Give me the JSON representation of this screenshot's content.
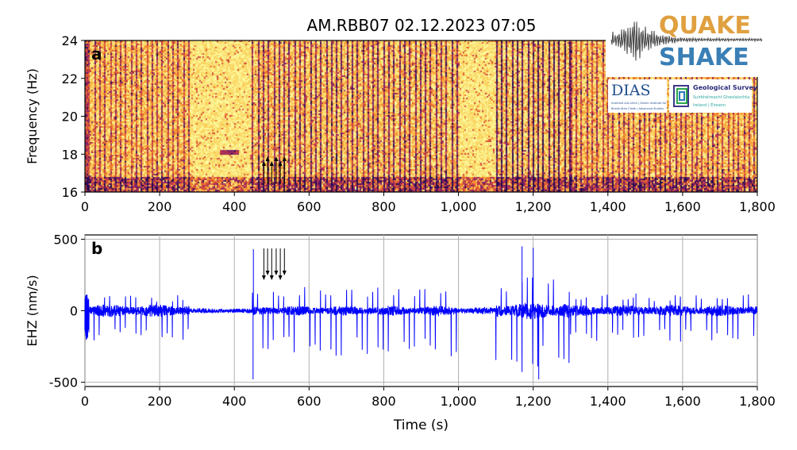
{
  "title": "AM.RBB07   02.12.2023   07:05",
  "logo": {
    "line1": "QUAKE",
    "line2": "SHAKE",
    "dias": "DIAS",
    "dias_sub1": "Institiúid Ard-Léinn | Dublin Institute for",
    "dias_sub2": "Bhaile Átha Cliath | Advanced Studies",
    "gsi": "Geological Survey",
    "gsi_sub1": "Suirbhéireacht Gheolaíochta",
    "gsi_sub2": "Ireland | Éireann"
  },
  "colors": {
    "trace": "#0000ff",
    "grid": "#b0b0b0",
    "quake": "#e0a040",
    "shake": "#3a7fb5"
  },
  "chart_data": [
    {
      "panel_label": "a",
      "type": "heatmap",
      "ylabel": "Frequency (Hz)",
      "xlim": [
        0,
        1800
      ],
      "ylim": [
        16,
        24
      ],
      "xticks": [
        0,
        200,
        400,
        600,
        800,
        1000,
        1200,
        1400,
        1600,
        1800
      ],
      "xtick_labels": [
        "0",
        "200",
        "400",
        "600",
        "800",
        "1,000",
        "1,200",
        "1,400",
        "1,600",
        "1,800"
      ],
      "yticks": [
        16,
        18,
        20,
        22,
        24
      ],
      "yticks_labels": [
        "16",
        "18",
        "20",
        "22",
        "24"
      ],
      "arrow_times": [
        479,
        489,
        500,
        512,
        523,
        534
      ],
      "colormap": "inferno-like (yellow low, purple high)"
    },
    {
      "panel_label": "b",
      "type": "line",
      "xlabel": "Time (s)",
      "ylabel": "EHZ (nm/s)",
      "xlim": [
        0,
        1800
      ],
      "ylim": [
        -530,
        530
      ],
      "xticks": [
        0,
        200,
        400,
        600,
        800,
        1000,
        1200,
        1400,
        1600,
        1800
      ],
      "xtick_labels": [
        "0",
        "200",
        "400",
        "600",
        "800",
        "1,000",
        "1,200",
        "1,400",
        "1,600",
        "1,800"
      ],
      "yticks": [
        -500,
        0,
        500
      ],
      "ytick_labels": [
        "-500",
        "0",
        "500"
      ],
      "grid": true,
      "arrow_times": [
        479,
        489,
        500,
        512,
        523,
        534
      ],
      "activity_segments": [
        {
          "start": 10,
          "end": 280,
          "interval": 14,
          "amplitude": 210,
          "noise": 45
        },
        {
          "start": 280,
          "end": 448,
          "interval": 0,
          "amplitude": 0,
          "noise": 18
        },
        {
          "start": 448,
          "end": 1000,
          "interval": 14,
          "amplitude": 320,
          "noise": 35
        },
        {
          "start": 1000,
          "end": 1100,
          "interval": 0,
          "amplitude": 0,
          "noise": 25
        },
        {
          "start": 1100,
          "end": 1300,
          "interval": 14,
          "amplitude": 430,
          "noise": 60
        },
        {
          "start": 1300,
          "end": 1800,
          "interval": 14,
          "amplitude": 220,
          "noise": 40
        }
      ],
      "peaks": [
        {
          "t": 450,
          "v": -480
        },
        {
          "t": 451,
          "v": 430
        },
        {
          "t": 1170,
          "v": 450
        },
        {
          "t": 1215,
          "v": -480
        },
        {
          "t": 1200,
          "v": 440
        },
        {
          "t": 1475,
          "v": 120
        }
      ]
    }
  ]
}
